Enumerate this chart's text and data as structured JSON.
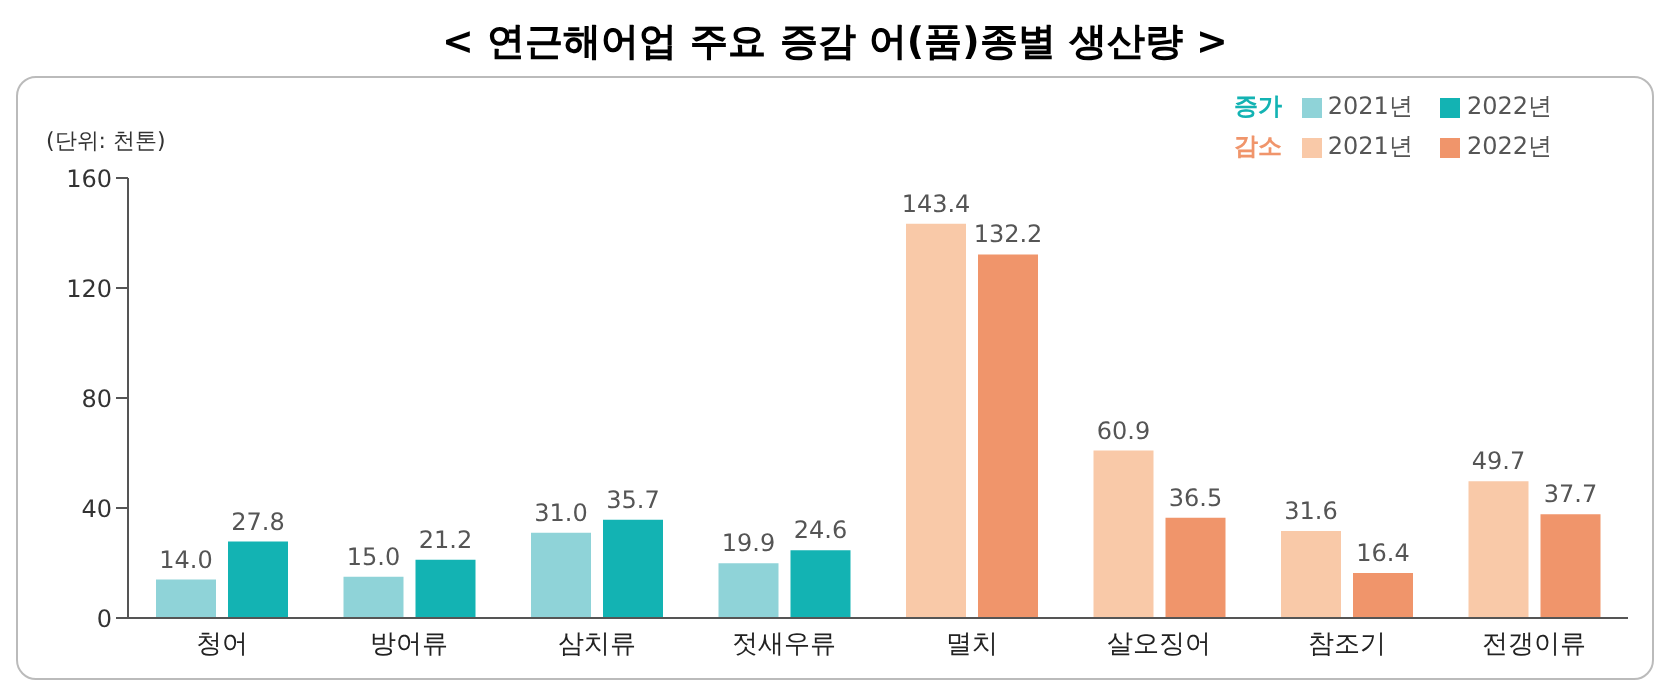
{
  "chart_data": {
    "type": "bar",
    "title": "< 연근해어업 주요 증감 어(품)종별 생산량 >",
    "ylabel": "(단위: 천톤)",
    "categories": [
      "청어",
      "방어류",
      "삼치류",
      "젓새우류",
      "멸치",
      "살오징어",
      "참조기",
      "전갱이류"
    ],
    "series": [
      {
        "name": "2021년",
        "colors": [
          "#8fd3d8",
          "#8fd3d8",
          "#8fd3d8",
          "#8fd3d8",
          "#f9c9a8",
          "#f9c9a8",
          "#f9c9a8",
          "#f9c9a8"
        ],
        "values": [
          14.0,
          15.0,
          31.0,
          19.9,
          143.4,
          60.9,
          31.6,
          49.7
        ],
        "value_labels": [
          "14.0",
          "15.0",
          "31.0",
          "19.9",
          "143.4",
          "60.9",
          "31.6",
          "49.7"
        ]
      },
      {
        "name": "2022년",
        "colors": [
          "#13b3b3",
          "#13b3b3",
          "#13b3b3",
          "#13b3b3",
          "#f0956b",
          "#f0956b",
          "#f0956b",
          "#f0956b"
        ],
        "values": [
          27.8,
          21.2,
          35.7,
          24.6,
          132.2,
          36.5,
          16.4,
          37.7
        ],
        "value_labels": [
          "27.8",
          "21.2",
          "35.7",
          "24.6",
          "132.2",
          "36.5",
          "16.4",
          "37.7"
        ]
      }
    ],
    "annotations": [
      "증가",
      "감소"
    ],
    "ylim": [
      0,
      160
    ],
    "yticks": [
      0,
      40,
      80,
      120,
      160
    ],
    "grid": false,
    "legend": "top right"
  }
}
